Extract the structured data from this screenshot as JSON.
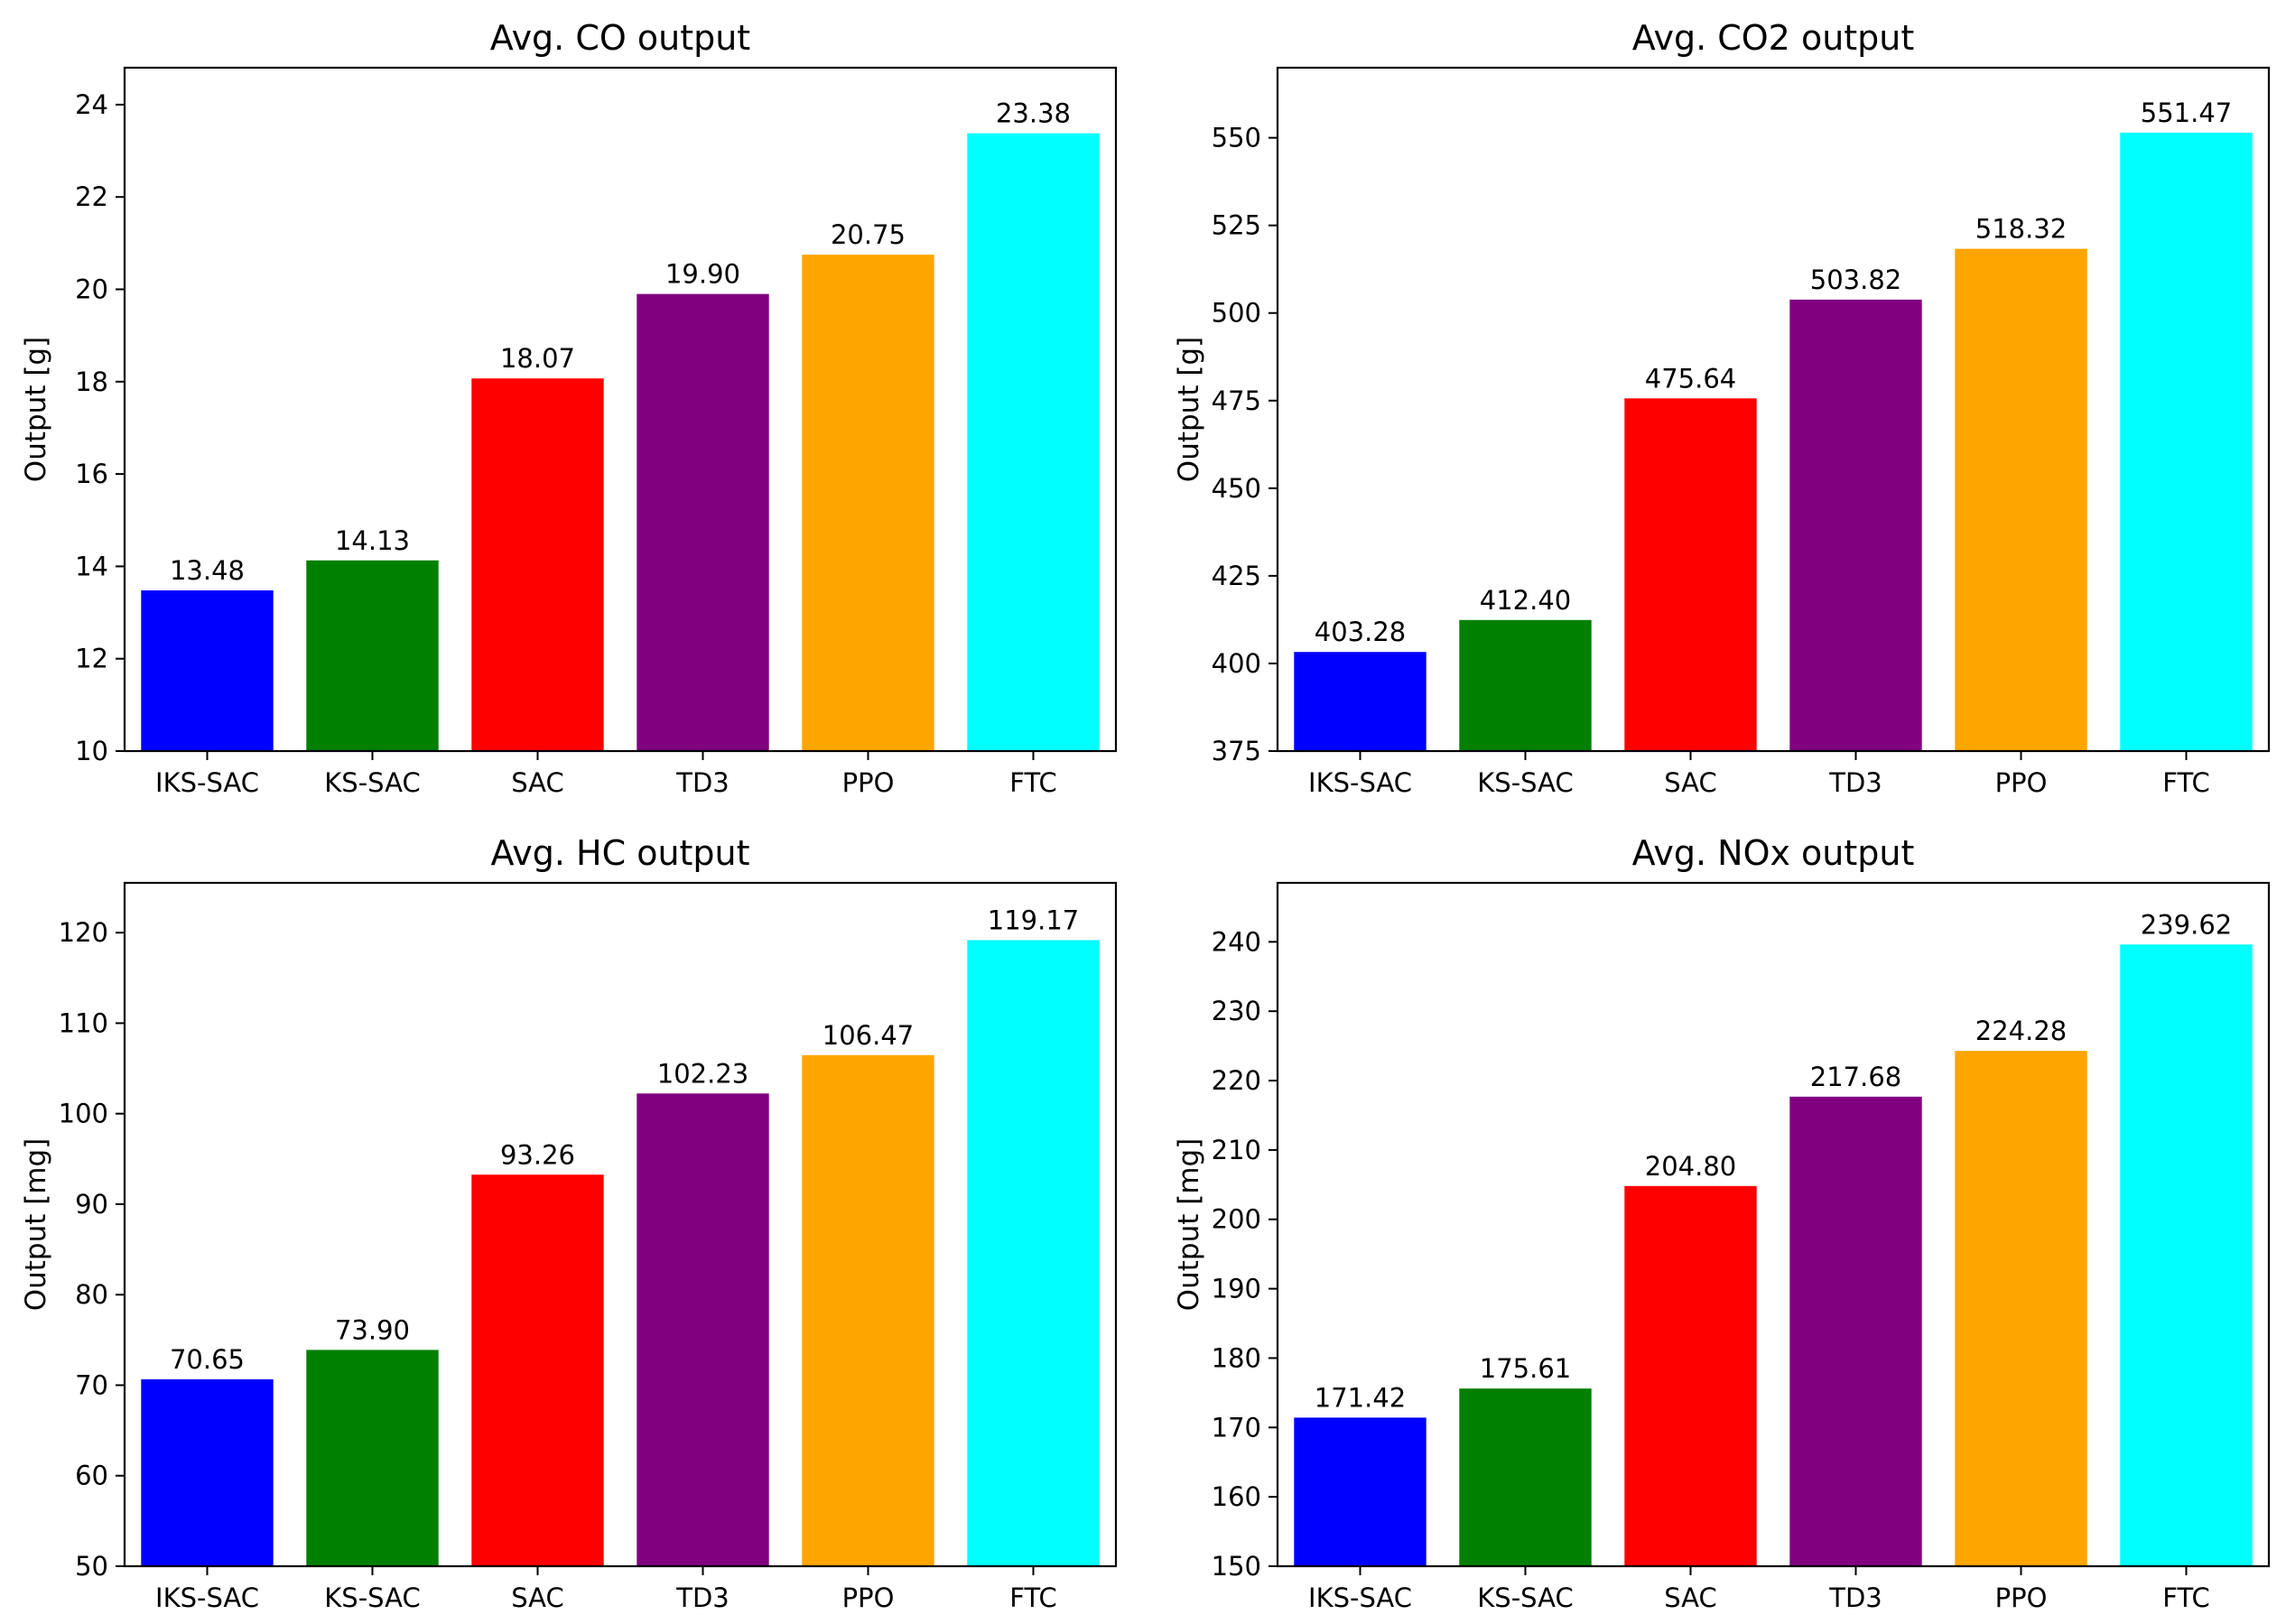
{
  "chart_data": [
    {
      "type": "bar",
      "title": "Avg. CO output",
      "xlabel": "",
      "ylabel": "Output [g]",
      "categories": [
        "IKS-SAC",
        "KS-SAC",
        "SAC",
        "TD3",
        "PPO",
        "FTC"
      ],
      "values": [
        13.48,
        14.13,
        18.07,
        19.9,
        20.75,
        23.38
      ],
      "value_labels": [
        "13.48",
        "14.13",
        "18.07",
        "19.90",
        "20.75",
        "23.38"
      ],
      "colors": [
        "#0000ff",
        "#008000",
        "#ff0000",
        "#800080",
        "#ffa500",
        "#00ffff"
      ],
      "ylim": [
        10,
        24.8
      ],
      "yticks": [
        10,
        12,
        14,
        16,
        18,
        20,
        22,
        24
      ],
      "ytick_labels": [
        "10",
        "12",
        "14",
        "16",
        "18",
        "20",
        "22",
        "24"
      ],
      "grid": false
    },
    {
      "type": "bar",
      "title": "Avg. CO2 output",
      "xlabel": "",
      "ylabel": "Output [g]",
      "categories": [
        "IKS-SAC",
        "KS-SAC",
        "SAC",
        "TD3",
        "PPO",
        "FTC"
      ],
      "values": [
        403.28,
        412.4,
        475.64,
        503.82,
        518.32,
        551.47
      ],
      "value_labels": [
        "403.28",
        "412.40",
        "475.64",
        "503.82",
        "518.32",
        "551.47"
      ],
      "colors": [
        "#0000ff",
        "#008000",
        "#ff0000",
        "#800080",
        "#ffa500",
        "#00ffff"
      ],
      "ylim": [
        375,
        570
      ],
      "yticks": [
        375,
        400,
        425,
        450,
        475,
        500,
        525,
        550
      ],
      "ytick_labels": [
        "375",
        "400",
        "425",
        "450",
        "475",
        "500",
        "525",
        "550"
      ],
      "grid": false
    },
    {
      "type": "bar",
      "title": "Avg. HC output",
      "xlabel": "",
      "ylabel": "Output [mg]",
      "categories": [
        "IKS-SAC",
        "KS-SAC",
        "SAC",
        "TD3",
        "PPO",
        "FTC"
      ],
      "values": [
        70.65,
        73.9,
        93.26,
        102.23,
        106.47,
        119.17
      ],
      "value_labels": [
        "70.65",
        "73.90",
        "93.26",
        "102.23",
        "106.47",
        "119.17"
      ],
      "colors": [
        "#0000ff",
        "#008000",
        "#ff0000",
        "#800080",
        "#ffa500",
        "#00ffff"
      ],
      "ylim": [
        50,
        125.5
      ],
      "yticks": [
        50,
        60,
        70,
        80,
        90,
        100,
        110,
        120
      ],
      "ytick_labels": [
        "50",
        "60",
        "70",
        "80",
        "90",
        "100",
        "110",
        "120"
      ],
      "grid": false
    },
    {
      "type": "bar",
      "title": "Avg. NOx output",
      "xlabel": "",
      "ylabel": "Output [mg]",
      "categories": [
        "IKS-SAC",
        "KS-SAC",
        "SAC",
        "TD3",
        "PPO",
        "FTC"
      ],
      "values": [
        171.42,
        175.61,
        204.8,
        217.68,
        224.28,
        239.62
      ],
      "value_labels": [
        "171.42",
        "175.61",
        "204.80",
        "217.68",
        "224.28",
        "239.62"
      ],
      "colors": [
        "#0000ff",
        "#008000",
        "#ff0000",
        "#800080",
        "#ffa500",
        "#00ffff"
      ],
      "ylim": [
        150,
        248.5
      ],
      "yticks": [
        150,
        160,
        170,
        180,
        190,
        200,
        210,
        220,
        230,
        240
      ],
      "ytick_labels": [
        "150",
        "160",
        "170",
        "180",
        "190",
        "200",
        "210",
        "220",
        "230",
        "240"
      ],
      "grid": false
    }
  ]
}
